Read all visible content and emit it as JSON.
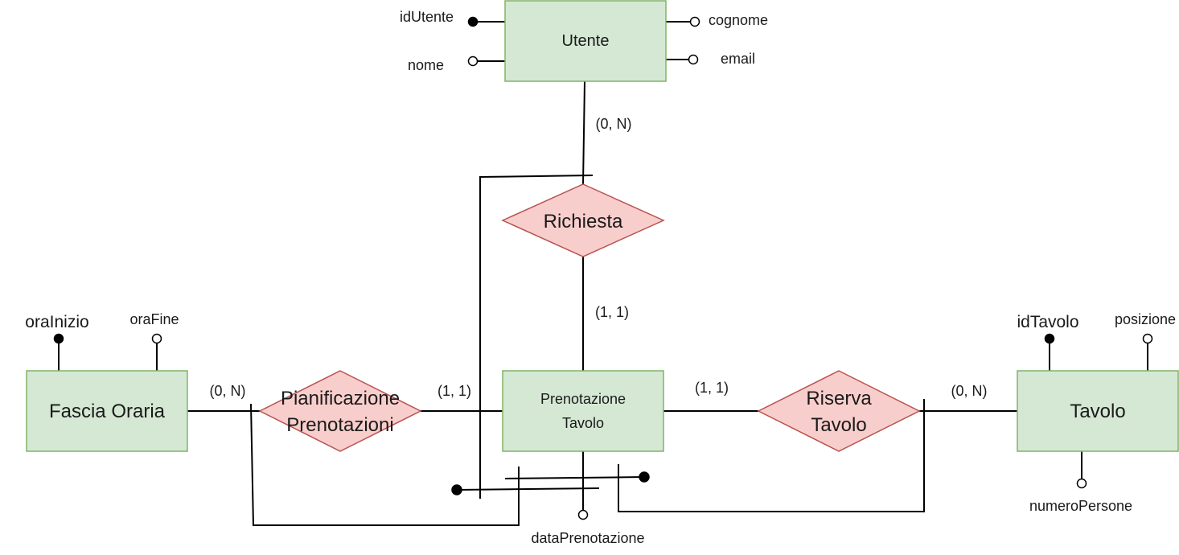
{
  "entities": {
    "utente": {
      "name": "Utente"
    },
    "fascia_oraria": {
      "name": "Fascia Oraria"
    },
    "prenotazione_tavolo": {
      "name_line1": "Prenotazione",
      "name_line2": "Tavolo"
    },
    "tavolo": {
      "name": "Tavolo"
    }
  },
  "relationships": {
    "richiesta": {
      "name": "Richiesta"
    },
    "pianificazione_prenotazioni": {
      "name_line1": "Pianificazione",
      "name_line2": "Prenotazioni"
    },
    "riserva_tavolo": {
      "name_line1": "Riserva",
      "name_line2": "Tavolo"
    }
  },
  "attributes": {
    "id_utente": "idUtente",
    "nome": "nome",
    "cognome": "cognome",
    "email": "email",
    "ora_inizio": "oraInizio",
    "ora_fine": "oraFine",
    "id_tavolo": "idTavolo",
    "posizione": "posizione",
    "numero_persone": "numeroPersone",
    "data_prenotazione": "dataPrenotazione"
  },
  "cardinalities": {
    "utente_richiesta": "(0, N)",
    "prenotazione_richiesta": "(1, 1)",
    "fascia_pianificazione": "(0, N)",
    "prenotazione_pianificazione": "(1, 1)",
    "prenotazione_riserva": "(1, 1)",
    "tavolo_riserva": "(0, N)"
  },
  "colors": {
    "entity_fill": "#d5e8d4",
    "entity_stroke": "#82b366",
    "relation_fill": "#f8cecc",
    "relation_stroke": "#b85450"
  }
}
